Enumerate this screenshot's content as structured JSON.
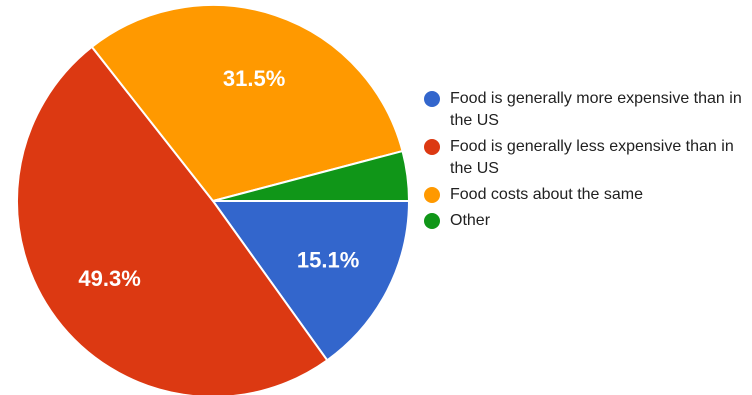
{
  "chart_data": {
    "type": "pie",
    "slices": [
      {
        "label": "Food is generally more expensive than in the US",
        "value": 15.1,
        "display": "15.1%",
        "color": "#3366cc"
      },
      {
        "label": "Food is generally less expensive than in the US",
        "value": 49.3,
        "display": "49.3%",
        "color": "#dc3912"
      },
      {
        "label": "Food costs about the same",
        "value": 31.5,
        "display": "31.5%",
        "color": "#ff9900"
      },
      {
        "label": "Other",
        "value": 4.1,
        "display": "",
        "color": "#109618"
      }
    ],
    "start_angle_deg": 90,
    "direction": "clockwise",
    "legend_position": "right"
  }
}
